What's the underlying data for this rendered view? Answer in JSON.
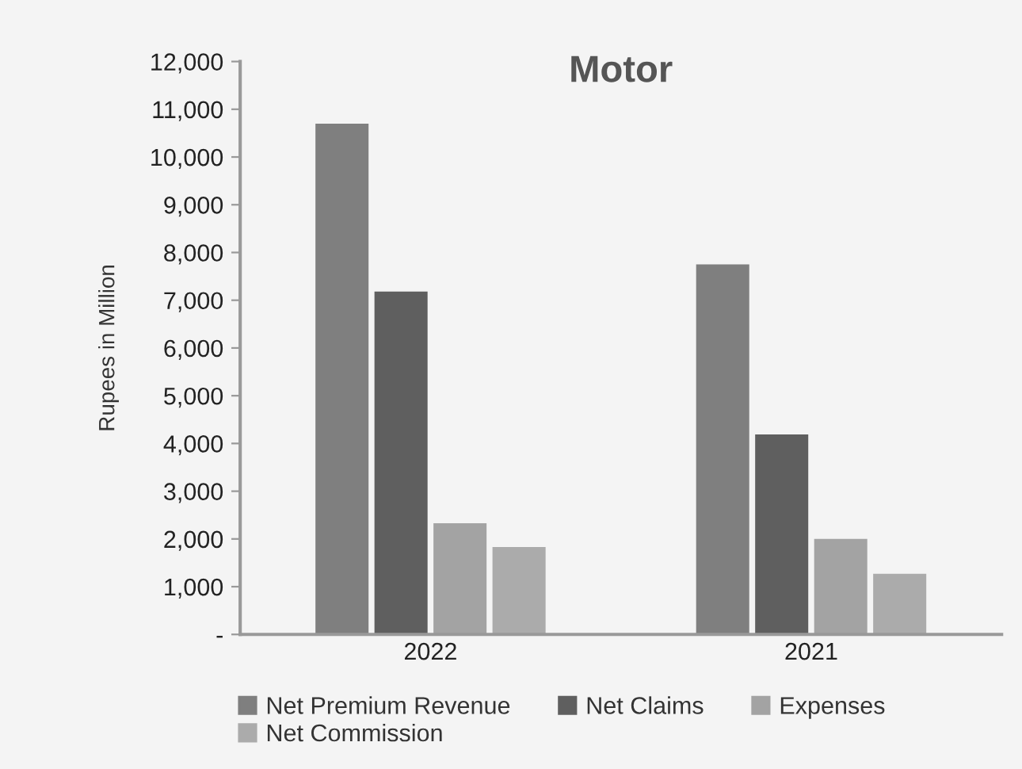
{
  "chart_data": {
    "type": "bar",
    "title": "Motor",
    "ylabel": "Rupees in Million",
    "categories": [
      "2022",
      "2021"
    ],
    "series": [
      {
        "name": "Net Premium Revenue",
        "color": "#7f7f7f",
        "values": [
          10700,
          7750
        ]
      },
      {
        "name": "Net Claims",
        "color": "#5f5f5f",
        "values": [
          7180,
          4190
        ]
      },
      {
        "name": "Expenses",
        "color": "#a3a3a3",
        "values": [
          2330,
          2000
        ]
      },
      {
        "name": "Net Commission",
        "color": "#ababab",
        "values": [
          1830,
          1270
        ]
      }
    ],
    "ylim": [
      0,
      12000
    ],
    "yticks": [
      {
        "value": 0,
        "label": "-"
      },
      {
        "value": 1000,
        "label": "1,000"
      },
      {
        "value": 2000,
        "label": "2,000"
      },
      {
        "value": 3000,
        "label": "3,000"
      },
      {
        "value": 4000,
        "label": "4,000"
      },
      {
        "value": 5000,
        "label": "5,000"
      },
      {
        "value": 6000,
        "label": "6,000"
      },
      {
        "value": 7000,
        "label": "7,000"
      },
      {
        "value": 8000,
        "label": "8,000"
      },
      {
        "value": 9000,
        "label": "9,000"
      },
      {
        "value": 10000,
        "label": "10,000"
      },
      {
        "value": 11000,
        "label": "11,000"
      },
      {
        "value": 12000,
        "label": "12,000"
      }
    ],
    "grid": false,
    "legend": "bottom"
  }
}
